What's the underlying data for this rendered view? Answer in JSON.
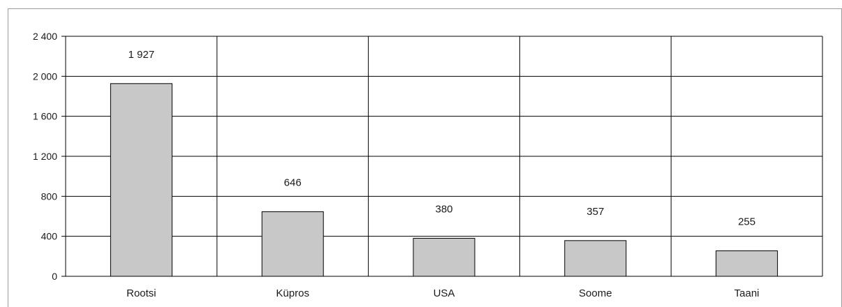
{
  "chart_data": {
    "type": "bar",
    "categories": [
      "Rootsi",
      "Küpros",
      "USA",
      "Soome",
      "Taani"
    ],
    "values": [
      1927,
      646,
      380,
      357,
      255
    ],
    "data_labels": [
      "1 927",
      "646",
      "380",
      "357",
      "255"
    ],
    "title": "",
    "xlabel": "",
    "ylabel": "",
    "ylim": [
      0,
      2400
    ],
    "yticks": [
      0,
      400,
      800,
      1200,
      1600,
      2000,
      2400
    ],
    "ytick_labels": [
      "0",
      "400",
      "800",
      "1 200",
      "1 600",
      "2 000",
      "2 400"
    ],
    "grid": true,
    "legend": "none",
    "colors": {
      "bar_fill": "#c8c8c8",
      "bar_stroke": "#000000",
      "grid": "#000000",
      "axis": "#000000"
    }
  }
}
